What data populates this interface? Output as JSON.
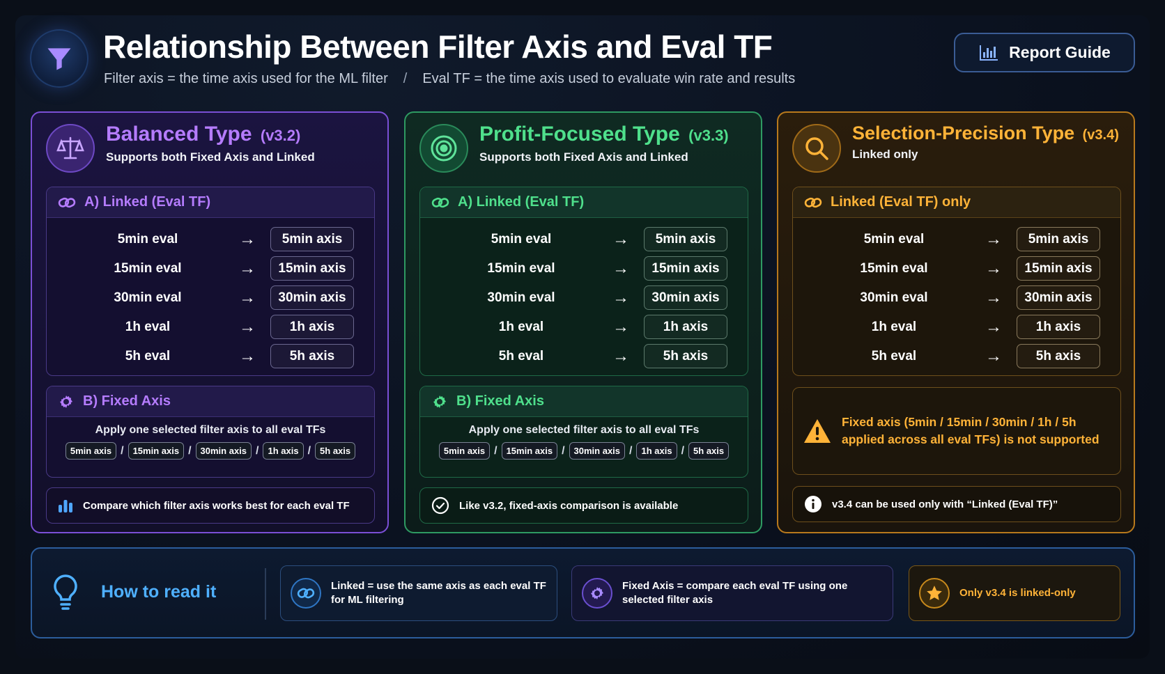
{
  "header": {
    "title": "Relationship Between Filter Axis and Eval TF",
    "subtitle_left": "Filter axis = the time axis used for the ML filter",
    "subtitle_sep": "/",
    "subtitle_right": "Eval TF = the time axis used to evaluate win rate and results",
    "report_button": "Report Guide"
  },
  "cards": [
    {
      "title": "Balanced Type",
      "version": "(v3.2)",
      "subtitle": "Supports both Fixed Axis and Linked",
      "linked_head": "A) Linked (Eval TF)",
      "rows": [
        {
          "eval": "5min eval",
          "axis": "5min axis"
        },
        {
          "eval": "15min eval",
          "axis": "15min axis"
        },
        {
          "eval": "30min eval",
          "axis": "30min axis"
        },
        {
          "eval": "1h eval",
          "axis": "1h axis"
        },
        {
          "eval": "5h eval",
          "axis": "5h axis"
        }
      ],
      "fixed_head": "B) Fixed Axis",
      "fixed_desc": "Apply one selected filter axis to all eval TFs",
      "chips": [
        "5min axis",
        "15min axis",
        "30min axis",
        "1h axis",
        "5h axis"
      ],
      "chip_sep": "/",
      "footer": "Compare which filter axis works best for each eval TF"
    },
    {
      "title": "Profit-Focused Type",
      "version": "(v3.3)",
      "subtitle": "Supports both Fixed Axis and Linked",
      "linked_head": "A) Linked (Eval TF)",
      "rows": [
        {
          "eval": "5min eval",
          "axis": "5min axis"
        },
        {
          "eval": "15min eval",
          "axis": "15min axis"
        },
        {
          "eval": "30min eval",
          "axis": "30min axis"
        },
        {
          "eval": "1h eval",
          "axis": "1h axis"
        },
        {
          "eval": "5h eval",
          "axis": "5h axis"
        }
      ],
      "fixed_head": "B) Fixed Axis",
      "fixed_desc": "Apply one selected filter axis to all eval TFs",
      "chips": [
        "5min axis",
        "15min axis",
        "30min axis",
        "1h axis",
        "5h axis"
      ],
      "chip_sep": "/",
      "footer": "Like v3.2, fixed-axis comparison is available"
    },
    {
      "title": "Selection-Precision Type",
      "version": "(v3.4)",
      "subtitle": "Linked only",
      "linked_head": "Linked (Eval TF) only",
      "rows": [
        {
          "eval": "5min eval",
          "axis": "5min axis"
        },
        {
          "eval": "15min eval",
          "axis": "15min axis"
        },
        {
          "eval": "30min eval",
          "axis": "30min axis"
        },
        {
          "eval": "1h eval",
          "axis": "1h axis"
        },
        {
          "eval": "5h eval",
          "axis": "5h axis"
        }
      ],
      "warning_line1": "Fixed axis (5min / 15min / 30min / 1h / 5h",
      "warning_line2": "applied across all eval TFs) is not supported",
      "footer": "v3.4 can be used only with “Linked (Eval TF)”"
    }
  ],
  "arrow": "→",
  "howto": {
    "title": "How to read it",
    "tip1_line1": "Linked = use the same axis as each eval TF",
    "tip1_line2": "for ML filtering",
    "tip2_line1": "Fixed Axis = compare each eval TF using one",
    "tip2_line2": "selected filter axis",
    "tip3": "Only v3.4 is linked-only"
  },
  "colors": {
    "purple": "#b57cff",
    "green": "#4fe08c",
    "orange": "#ffb338",
    "blue": "#4fb0ff"
  }
}
